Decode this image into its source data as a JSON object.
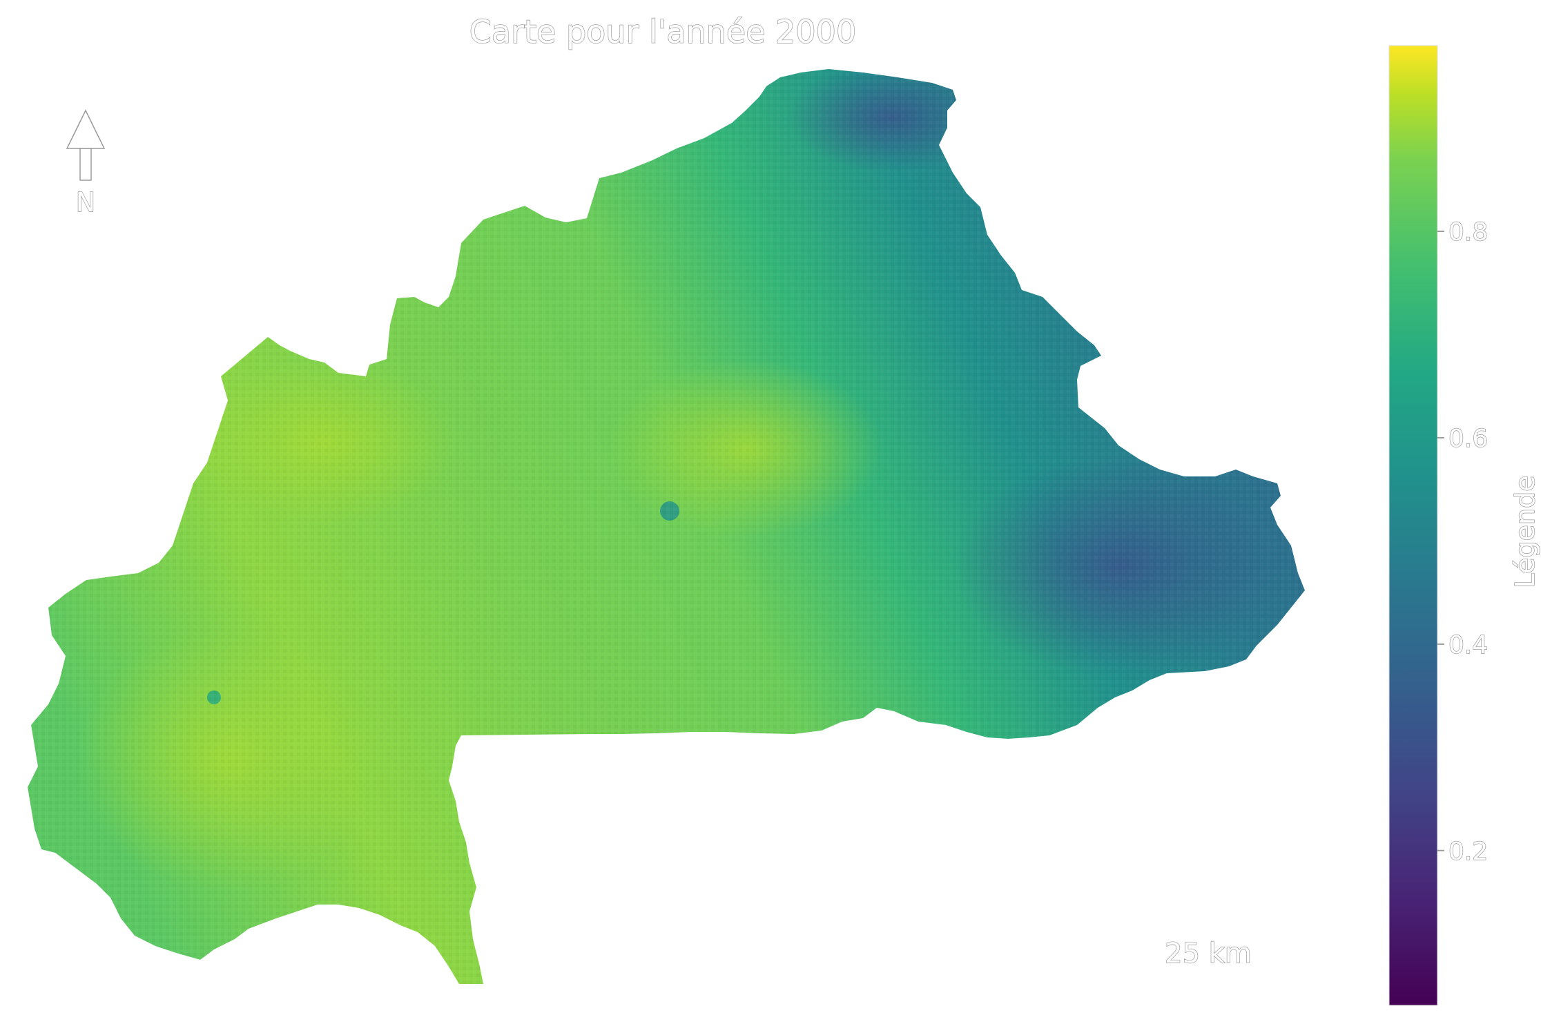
{
  "map": {
    "title": "Carte pour l'année 2000",
    "north_arrow_label": "N",
    "scale_bar_label": "25 km",
    "colormap": "viridis",
    "colors": {
      "low": "#440154",
      "mid": "#21918c",
      "high": "#fde725",
      "text_outline": "#9a9a9a"
    }
  },
  "legend": {
    "title": "Légende",
    "ticks": [
      "0.2",
      "0.4",
      "0.6",
      "0.8"
    ],
    "tick_values": [
      0.2,
      0.4,
      0.6,
      0.8
    ],
    "range": [
      0.05,
      0.98
    ]
  }
}
